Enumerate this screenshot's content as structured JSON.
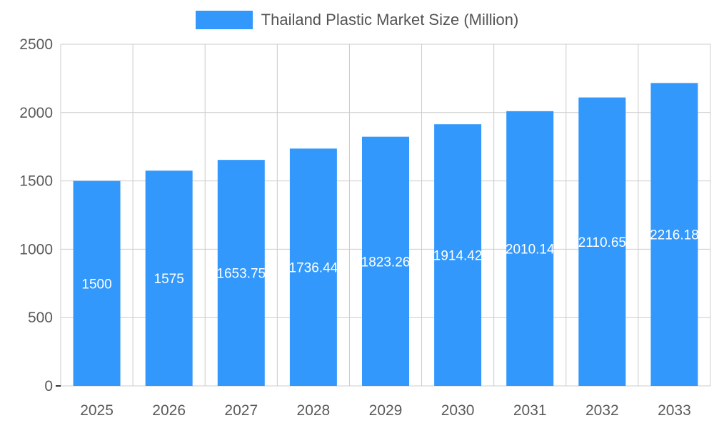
{
  "chart_data": {
    "type": "bar",
    "title": "Thailand Plastic Market Size (Million)",
    "categories": [
      "2025",
      "2026",
      "2027",
      "2028",
      "2029",
      "2030",
      "2031",
      "2032",
      "2033"
    ],
    "values": [
      1500,
      1575,
      1653.75,
      1736.44,
      1823.26,
      1914.42,
      2010.14,
      2110.65,
      2216.18
    ],
    "labels": [
      "1500",
      "1575",
      "1653.75",
      "1736.44",
      "1823.26",
      "1914.42",
      "2010.14",
      "2110.65",
      "2216.18"
    ],
    "xlabel": "",
    "ylabel": "",
    "ylim": [
      0,
      2500
    ],
    "yticks": [
      0,
      500,
      1000,
      1500,
      2000,
      2500
    ],
    "grid": true,
    "legend_position": "top",
    "colors": {
      "bar": "#3398FC",
      "grid": "#CCCCCC",
      "axis_text": "#5A5A5A",
      "legend_text": "#545454",
      "bar_label_text": "#FFFFFF",
      "zero_tick": "#333333"
    }
  }
}
